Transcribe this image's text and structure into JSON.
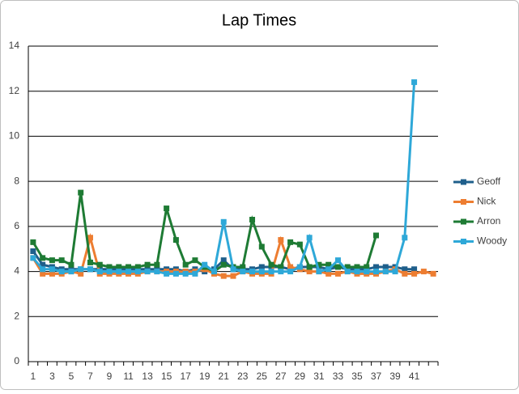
{
  "chart_data": {
    "type": "line",
    "title": "Lap Times",
    "categories": [
      "1",
      null,
      "3",
      null,
      "5",
      null,
      "7",
      null,
      "9",
      null,
      "11",
      null,
      "13",
      null,
      "15",
      null,
      "17",
      null,
      "19",
      null,
      "21",
      null,
      "23",
      null,
      "25",
      null,
      "27",
      null,
      "29",
      null,
      "31",
      null,
      "33",
      null,
      "35",
      null,
      "37",
      null,
      "39",
      null,
      "41",
      null,
      null
    ],
    "series": [
      {
        "name": "Geoff",
        "color": "#1f5f8b",
        "values": [
          4.9,
          4.3,
          4.2,
          4.1,
          4.1,
          4.1,
          4.1,
          4.1,
          4.1,
          4.1,
          4.1,
          4.1,
          4.1,
          4.1,
          4.1,
          4.1,
          4.0,
          4.1,
          4.0,
          4.1,
          4.5,
          4.1,
          4.1,
          4.1,
          4.2,
          4.2,
          4.2,
          4.1,
          4.2,
          4.2,
          4.2,
          4.1,
          4.2,
          4.1,
          4.1,
          4.1,
          4.2,
          4.2,
          4.2,
          4.1,
          4.1,
          null,
          null
        ]
      },
      {
        "name": "Nick",
        "color": "#ed7d31",
        "values": [
          4.6,
          3.9,
          3.9,
          3.9,
          4.0,
          3.9,
          5.5,
          3.9,
          3.9,
          3.9,
          3.9,
          3.9,
          4.0,
          4.0,
          4.0,
          4.0,
          4.0,
          4.0,
          4.1,
          3.9,
          3.8,
          3.8,
          4.0,
          3.9,
          3.9,
          3.9,
          5.4,
          4.2,
          4.1,
          4.0,
          4.0,
          3.9,
          3.9,
          4.0,
          3.9,
          3.9,
          3.9,
          4.0,
          4.1,
          3.9,
          3.9,
          4.0,
          3.9
        ]
      },
      {
        "name": "Arron",
        "color": "#1e7b34",
        "values": [
          5.3,
          4.6,
          4.5,
          4.5,
          4.3,
          7.5,
          4.4,
          4.3,
          4.2,
          4.2,
          4.2,
          4.2,
          4.3,
          4.3,
          6.8,
          5.4,
          4.3,
          4.5,
          4.2,
          4.0,
          4.3,
          4.2,
          4.2,
          6.3,
          5.1,
          4.3,
          4.2,
          5.3,
          5.2,
          4.2,
          4.3,
          4.3,
          4.2,
          4.2,
          4.2,
          4.2,
          5.6,
          null,
          null,
          null,
          null,
          null,
          null
        ]
      },
      {
        "name": "Woody",
        "color": "#2ea8d8",
        "values": [
          4.6,
          4.1,
          4.1,
          4.0,
          4.0,
          4.1,
          4.1,
          4.0,
          4.0,
          4.0,
          4.0,
          4.0,
          4.0,
          4.0,
          3.9,
          3.9,
          3.9,
          3.9,
          4.3,
          4.0,
          6.2,
          4.1,
          4.0,
          4.0,
          4.0,
          4.0,
          4.0,
          4.0,
          4.2,
          5.5,
          4.0,
          4.1,
          4.5,
          4.0,
          4.0,
          4.0,
          4.0,
          4.0,
          4.0,
          5.5,
          12.4,
          null,
          null
        ]
      }
    ],
    "ylim": [
      0,
      14
    ],
    "yticks": [
      0,
      2,
      4,
      6,
      8,
      10,
      12,
      14
    ],
    "grid": true,
    "legend": "right"
  }
}
